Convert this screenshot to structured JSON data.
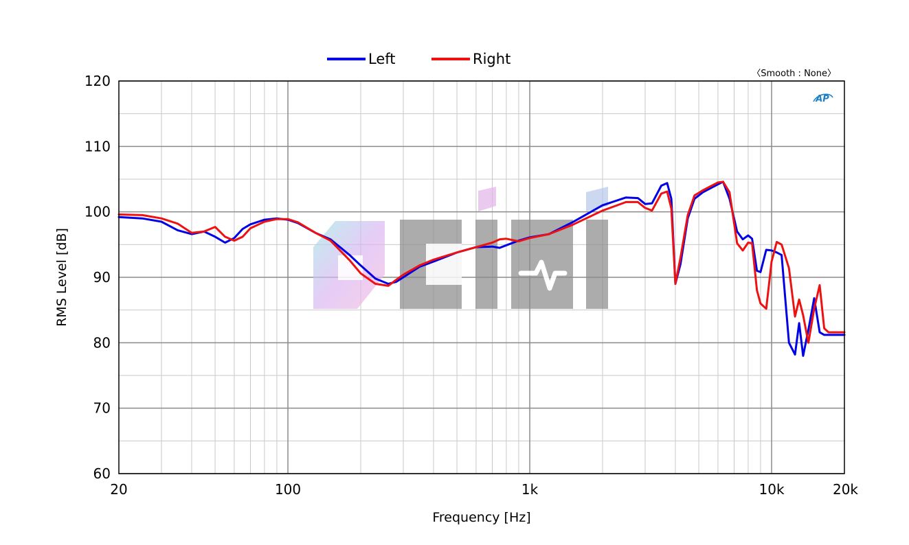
{
  "chart_data": {
    "type": "line",
    "xlabel": "Frequency [Hz]",
    "ylabel": "RMS Level [dB]",
    "xscale": "log",
    "xlim": [
      20,
      20000
    ],
    "ylim": [
      60,
      120
    ],
    "x_ticks": [
      {
        "value": 20,
        "label": "20"
      },
      {
        "value": 100,
        "label": "100"
      },
      {
        "value": 1000,
        "label": "1k"
      },
      {
        "value": 10000,
        "label": "10k"
      },
      {
        "value": 20000,
        "label": "20k"
      }
    ],
    "y_ticks": [
      60,
      70,
      80,
      90,
      100,
      110,
      120
    ],
    "grid": true,
    "legend_position": "top-center",
    "annotation": "〈Smooth : None〉",
    "logo_text": "AP",
    "series": [
      {
        "name": "Left",
        "color": "#0000e6",
        "x": [
          20,
          25,
          30,
          35,
          40,
          45,
          50,
          55,
          60,
          65,
          70,
          80,
          90,
          100,
          110,
          130,
          150,
          180,
          200,
          230,
          260,
          280,
          300,
          350,
          400,
          500,
          600,
          700,
          750,
          800,
          900,
          1000,
          1200,
          1500,
          2000,
          2500,
          2800,
          3000,
          3200,
          3500,
          3700,
          3850,
          4000,
          4200,
          4500,
          4800,
          5200,
          6000,
          6300,
          6700,
          7200,
          7600,
          8000,
          8300,
          8700,
          9000,
          9500,
          10000,
          10500,
          11000,
          11800,
          12500,
          13000,
          13500,
          14200,
          15000,
          15800,
          16500,
          17200,
          18200,
          19000,
          20000
        ],
        "y": [
          99.2,
          99.0,
          98.5,
          97.2,
          96.6,
          97.0,
          96.2,
          95.3,
          96.0,
          97.4,
          98.1,
          98.8,
          99.0,
          98.8,
          98.3,
          96.8,
          95.8,
          93.4,
          91.8,
          89.8,
          89.0,
          89.3,
          90.0,
          91.6,
          92.4,
          93.8,
          94.6,
          94.7,
          94.5,
          94.9,
          95.6,
          96.1,
          96.6,
          98.4,
          101.0,
          102.2,
          102.1,
          101.2,
          101.3,
          104.0,
          104.4,
          102.0,
          89.0,
          92.0,
          99.0,
          102.0,
          103.0,
          104.2,
          104.6,
          102.0,
          97.0,
          95.8,
          96.4,
          95.9,
          91.0,
          90.8,
          94.2,
          94.1,
          93.8,
          93.4,
          80.0,
          78.2,
          83.0,
          78.0,
          82.0,
          86.8,
          81.6,
          81.2,
          81.2,
          81.2,
          81.2,
          81.2
        ]
      },
      {
        "name": "Right",
        "color": "#ee1111",
        "x": [
          20,
          25,
          30,
          35,
          40,
          45,
          50,
          55,
          60,
          65,
          70,
          80,
          90,
          100,
          110,
          130,
          150,
          180,
          200,
          230,
          260,
          280,
          300,
          350,
          400,
          500,
          600,
          700,
          750,
          800,
          900,
          1000,
          1200,
          1500,
          2000,
          2500,
          2800,
          3000,
          3200,
          3500,
          3700,
          3850,
          4000,
          4200,
          4500,
          4800,
          5200,
          6000,
          6300,
          6700,
          7200,
          7600,
          8000,
          8300,
          8700,
          9000,
          9500,
          10000,
          10500,
          11000,
          11800,
          12500,
          13000,
          13500,
          14200,
          15000,
          15800,
          16500,
          17200,
          18200,
          19000,
          20000
        ],
        "y": [
          99.6,
          99.5,
          99.0,
          98.2,
          96.8,
          97.0,
          97.7,
          96.2,
          95.6,
          96.2,
          97.5,
          98.5,
          98.9,
          98.9,
          98.4,
          96.8,
          95.6,
          92.6,
          90.6,
          89.0,
          88.7,
          89.6,
          90.4,
          91.8,
          92.7,
          93.8,
          94.6,
          95.3,
          95.8,
          95.9,
          95.5,
          96.0,
          96.6,
          98.0,
          100.2,
          101.5,
          101.5,
          100.6,
          100.2,
          102.8,
          103.1,
          100.5,
          89.0,
          93.0,
          99.5,
          102.5,
          103.3,
          104.5,
          104.6,
          103.0,
          95.2,
          94.1,
          95.3,
          95.2,
          88.0,
          86.0,
          85.2,
          92.4,
          95.4,
          95.0,
          91.4,
          84.0,
          86.6,
          84.2,
          80.0,
          85.2,
          88.8,
          82.2,
          81.6,
          81.6,
          81.6,
          81.6
        ]
      }
    ]
  }
}
